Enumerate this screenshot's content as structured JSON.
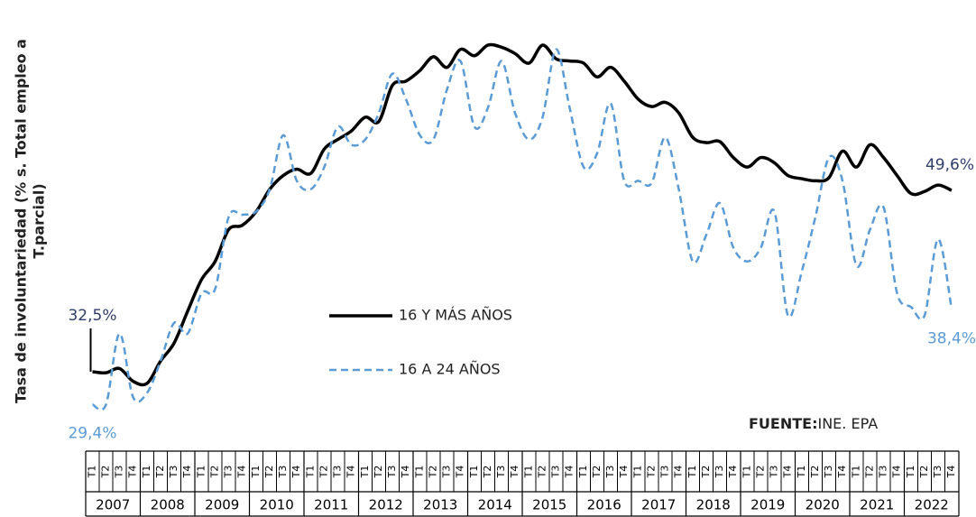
{
  "chart_data": {
    "type": "line",
    "y_label": [
      "Tasa de involuntariedad (% s. Total empleo a",
      "T.parcial)"
    ],
    "categories": [
      "T1",
      "T2",
      "T3",
      "T4",
      "T1",
      "T2",
      "T3",
      "T4",
      "T1",
      "T2",
      "T3",
      "T4",
      "T1",
      "T2",
      "T3",
      "T4",
      "T1",
      "T2",
      "T3",
      "T4",
      "T1",
      "T2",
      "T3",
      "T4",
      "T1",
      "T2",
      "T3",
      "T4",
      "T1",
      "T2",
      "T3",
      "T4",
      "T1",
      "T2",
      "T3",
      "T4",
      "T1",
      "T2",
      "T3",
      "T4",
      "T1",
      "T2",
      "T3",
      "T4",
      "T1",
      "T2",
      "T3",
      "T4",
      "T1",
      "T2",
      "T3",
      "T4",
      "T1",
      "T2",
      "T3",
      "T4",
      "T1",
      "T2",
      "T3",
      "T4",
      "T1",
      "T2",
      "T3",
      "T4"
    ],
    "years": [
      "2007",
      "2008",
      "2009",
      "2010",
      "2011",
      "2012",
      "2013",
      "2014",
      "2015",
      "2016",
      "2017",
      "2018",
      "2019",
      "2020",
      "2021",
      "2022"
    ],
    "ylim": [
      27,
      65
    ],
    "series": [
      {
        "name": "16 Y MÁS AÑOS",
        "color": "#000000",
        "dashed": false,
        "values": [
          32.5,
          32.4,
          32.8,
          31.6,
          31.4,
          33.5,
          35.2,
          38.2,
          41.2,
          42.9,
          45.9,
          46.3,
          47.6,
          49.7,
          51.0,
          51.6,
          51.2,
          53.5,
          54.4,
          55.2,
          56.5,
          56.1,
          59.5,
          59.9,
          60.9,
          62.2,
          61.2,
          62.9,
          62.3,
          63.3,
          63.1,
          62.5,
          61.6,
          63.3,
          62.0,
          61.8,
          61.6,
          60.3,
          61.2,
          59.9,
          58.2,
          57.5,
          57.9,
          56.9,
          54.6,
          54.1,
          54.2,
          52.7,
          51.8,
          52.7,
          52.2,
          51.0,
          50.7,
          50.5,
          50.8,
          53.3,
          51.8,
          53.9,
          52.7,
          51.0,
          49.3,
          49.5,
          50.1,
          49.6
        ],
        "value_labels": [
          "32,5%",
          null,
          null,
          null,
          null,
          null,
          null,
          null,
          null,
          null,
          null,
          null,
          null,
          null,
          null,
          null,
          null,
          null,
          null,
          null,
          null,
          null,
          null,
          null,
          null,
          null,
          null,
          null,
          null,
          null,
          null,
          null,
          null,
          null,
          null,
          null,
          null,
          null,
          null,
          null,
          null,
          null,
          null,
          null,
          null,
          null,
          null,
          null,
          null,
          null,
          null,
          null,
          null,
          null,
          null,
          null,
          null,
          null,
          null,
          null,
          null,
          null,
          null,
          "49,6%"
        ]
      },
      {
        "name": "16 A 24 AÑOS",
        "color": "#5b9bd5",
        "dashed": true,
        "values": [
          29.4,
          29.4,
          36.1,
          30.1,
          30.5,
          33.5,
          37.1,
          36.1,
          39.9,
          40.3,
          47.1,
          47.3,
          47.6,
          49.7,
          54.8,
          50.5,
          49.7,
          51.8,
          55.6,
          53.9,
          54.4,
          56.9,
          60.6,
          58.2,
          54.8,
          54.4,
          59.1,
          61.8,
          55.6,
          57.4,
          61.8,
          56.9,
          54.4,
          56.5,
          62.9,
          57.4,
          51.8,
          53.1,
          57.8,
          50.5,
          50.5,
          50.3,
          54.6,
          49.7,
          42.9,
          45.4,
          48.4,
          44.2,
          42.9,
          44.2,
          47.6,
          37.8,
          42.0,
          47.1,
          52.7,
          50.5,
          42.5,
          45.9,
          48.0,
          39.9,
          38.6,
          37.8,
          45.0,
          38.4
        ],
        "value_labels": [
          "29,4%",
          null,
          null,
          null,
          null,
          null,
          null,
          null,
          null,
          null,
          null,
          null,
          null,
          null,
          null,
          null,
          null,
          null,
          null,
          null,
          null,
          null,
          null,
          null,
          null,
          null,
          null,
          null,
          null,
          null,
          null,
          null,
          null,
          null,
          null,
          null,
          null,
          null,
          null,
          null,
          null,
          null,
          null,
          null,
          null,
          null,
          null,
          null,
          null,
          null,
          null,
          null,
          null,
          null,
          null,
          null,
          null,
          null,
          null,
          null,
          null,
          null,
          null,
          "38,4%"
        ]
      }
    ],
    "source": {
      "label": "FUENTE:",
      "text": "INE. EPA"
    }
  }
}
